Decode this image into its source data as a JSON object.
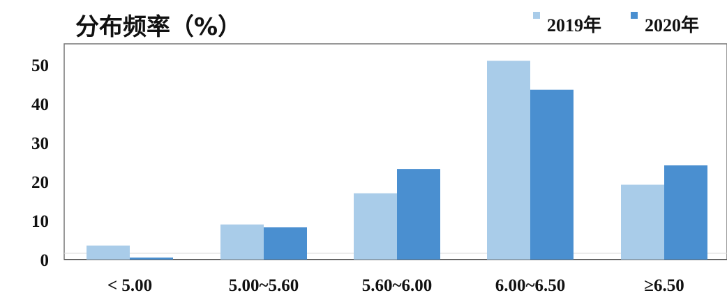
{
  "chart_data": {
    "type": "bar",
    "title": "分布频率（%）",
    "xlabel": "",
    "ylabel": "",
    "categories": [
      "< 5.00",
      "5.00~5.60",
      "5.60~6.00",
      "6.00~6.50",
      "≥6.50"
    ],
    "series": [
      {
        "name": "2019年",
        "values": [
          3.6,
          9,
          17,
          51,
          19.2
        ],
        "color": "#a9cce9"
      },
      {
        "name": "2020年",
        "values": [
          0.5,
          8.3,
          23.2,
          43.6,
          24.2
        ],
        "color": "#4a8fd0"
      }
    ],
    "ylim": [
      0,
      55
    ],
    "yticks": [
      "0",
      "10",
      "20",
      "30",
      "40",
      "50"
    ],
    "legend": "top-right",
    "grid": false
  }
}
